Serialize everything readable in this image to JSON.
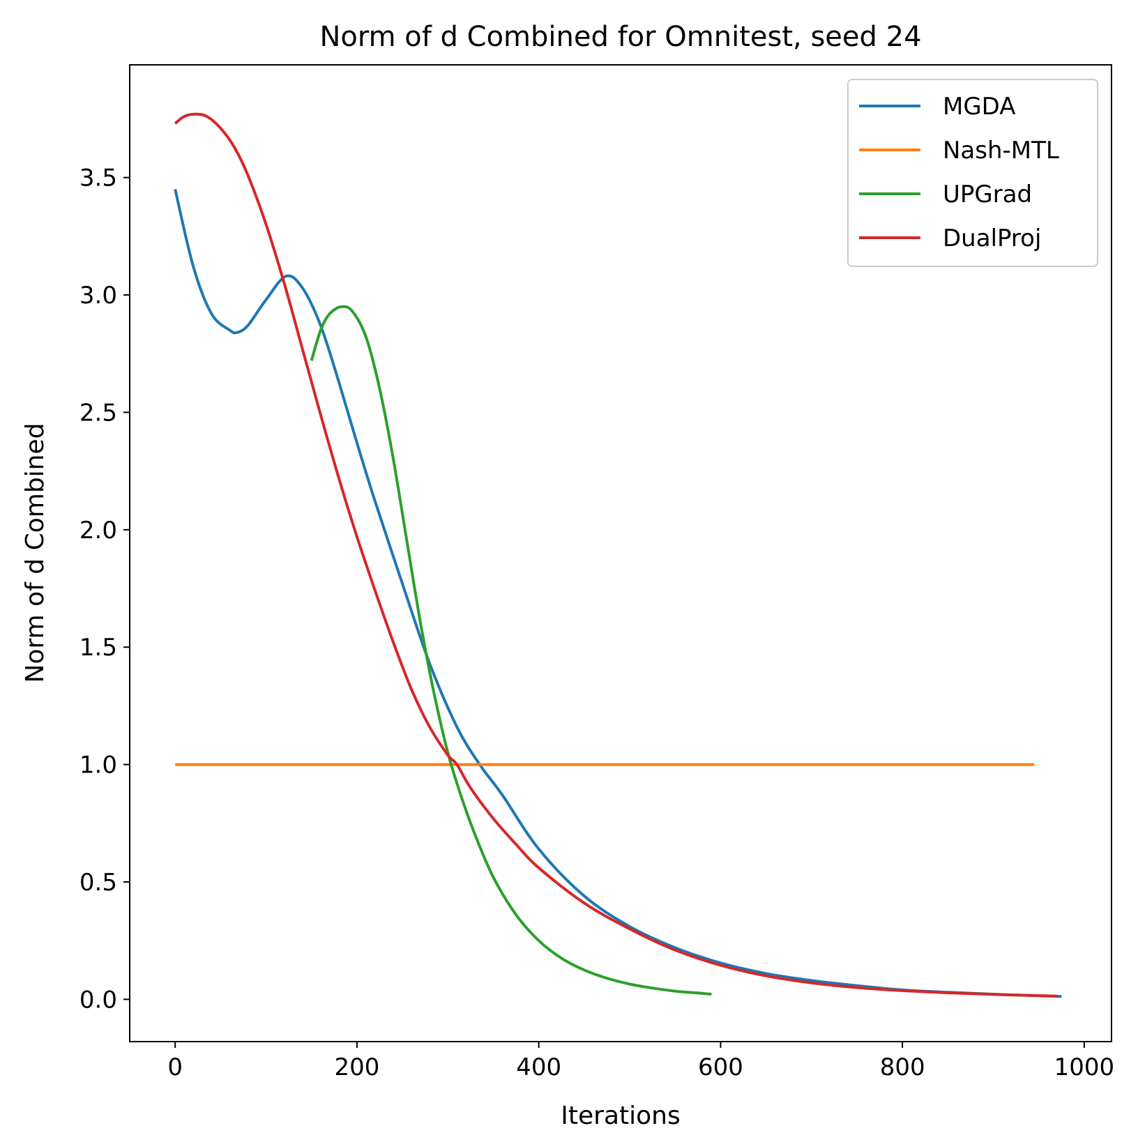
{
  "chart_data": {
    "type": "line",
    "title": "Norm of d Combined for Omnitest, seed 24",
    "xlabel": "Iterations",
    "ylabel": "Norm of d Combined",
    "xlim": [
      -50,
      1030
    ],
    "ylim": [
      -0.18,
      3.98
    ],
    "xticks": [
      0,
      200,
      400,
      600,
      800,
      1000
    ],
    "xtick_labels": [
      "0",
      "200",
      "400",
      "600",
      "800",
      "1000"
    ],
    "yticks": [
      0.0,
      0.5,
      1.0,
      1.5,
      2.0,
      2.5,
      3.0,
      3.5
    ],
    "ytick_labels": [
      "0.0",
      "0.5",
      "1.0",
      "1.5",
      "2.0",
      "2.5",
      "3.0",
      "3.5"
    ],
    "grid": false,
    "legend_position": "top-right",
    "series": [
      {
        "name": "MGDA",
        "color": "#1f77b4",
        "x": [
          0,
          20,
          40,
          60,
          68,
          80,
          100,
          122,
          140,
          160,
          180,
          200,
          220,
          250,
          280,
          310,
          335,
          360,
          400,
          450,
          500,
          550,
          600,
          650,
          700,
          750,
          800,
          850,
          900,
          950,
          975
        ],
        "y": [
          3.45,
          3.12,
          2.92,
          2.85,
          2.84,
          2.87,
          2.98,
          3.08,
          3.03,
          2.87,
          2.63,
          2.37,
          2.12,
          1.77,
          1.43,
          1.16,
          1.0,
          0.87,
          0.64,
          0.44,
          0.31,
          0.22,
          0.155,
          0.11,
          0.08,
          0.058,
          0.04,
          0.03,
          0.022,
          0.015,
          0.012
        ]
      },
      {
        "name": "Nash-MTL",
        "color": "#ff7f0e",
        "x": [
          0,
          945
        ],
        "y": [
          1.0,
          1.0
        ]
      },
      {
        "name": "UPGrad",
        "color": "#2ca02c",
        "x": [
          150,
          160,
          170,
          183,
          195,
          210,
          225,
          240,
          255,
          270,
          285,
          300,
          315,
          330,
          350,
          375,
          400,
          425,
          450,
          475,
          500,
          525,
          550,
          575,
          590
        ],
        "y": [
          2.72,
          2.85,
          2.92,
          2.95,
          2.93,
          2.82,
          2.6,
          2.3,
          1.95,
          1.6,
          1.3,
          1.05,
          0.86,
          0.7,
          0.52,
          0.36,
          0.25,
          0.175,
          0.125,
          0.09,
          0.065,
          0.048,
          0.035,
          0.027,
          0.022
        ]
      },
      {
        "name": "DualProj",
        "color": "#d62728",
        "x": [
          0,
          10,
          22,
          35,
          50,
          65,
          80,
          100,
          120,
          140,
          160,
          180,
          200,
          220,
          240,
          260,
          280,
          300,
          310,
          325,
          350,
          375,
          400,
          450,
          500,
          550,
          600,
          650,
          700,
          750,
          800,
          850,
          900,
          950,
          970
        ],
        "y": [
          3.73,
          3.76,
          3.77,
          3.76,
          3.71,
          3.63,
          3.51,
          3.3,
          3.05,
          2.77,
          2.49,
          2.22,
          1.97,
          1.74,
          1.52,
          1.32,
          1.16,
          1.04,
          1.0,
          0.9,
          0.77,
          0.66,
          0.56,
          0.41,
          0.3,
          0.21,
          0.145,
          0.1,
          0.07,
          0.05,
          0.037,
          0.028,
          0.021,
          0.016,
          0.014
        ]
      }
    ]
  }
}
